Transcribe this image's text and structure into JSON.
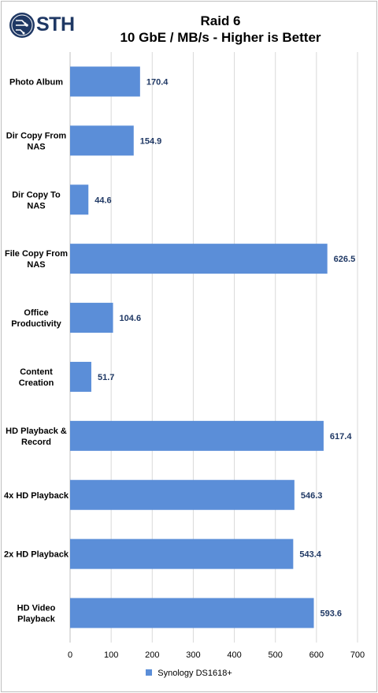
{
  "brand": {
    "logo_text": "STH",
    "logo_icon": "circuit-globe-icon",
    "logo_color": "#1f3864"
  },
  "chart_data": {
    "type": "bar",
    "orientation": "horizontal",
    "title": [
      "Raid 6",
      "10 GbE / MB/s - Higher is Better"
    ],
    "categories": [
      [
        "Photo Album"
      ],
      [
        "Dir Copy From",
        "NAS"
      ],
      [
        "Dir Copy To",
        "NAS"
      ],
      [
        "File Copy From",
        "NAS"
      ],
      [
        "Office",
        "Productivity"
      ],
      [
        "Content",
        "Creation"
      ],
      [
        "HD Playback &",
        "Record"
      ],
      [
        "4x HD Playback"
      ],
      [
        "2x HD Playback"
      ],
      [
        "HD Video",
        "Playback"
      ]
    ],
    "series": [
      {
        "name": "Synology DS1618+",
        "color": "#5b8ed8",
        "values": [
          170.4,
          154.9,
          44.6,
          626.5,
          104.6,
          51.7,
          617.4,
          546.3,
          543.4,
          593.6
        ]
      }
    ],
    "xlim": [
      0,
      700
    ],
    "xticks": [
      0,
      100,
      200,
      300,
      400,
      500,
      600,
      700
    ],
    "grid": true,
    "legend_position": "bottom",
    "data_label_color": "#1f3864"
  }
}
